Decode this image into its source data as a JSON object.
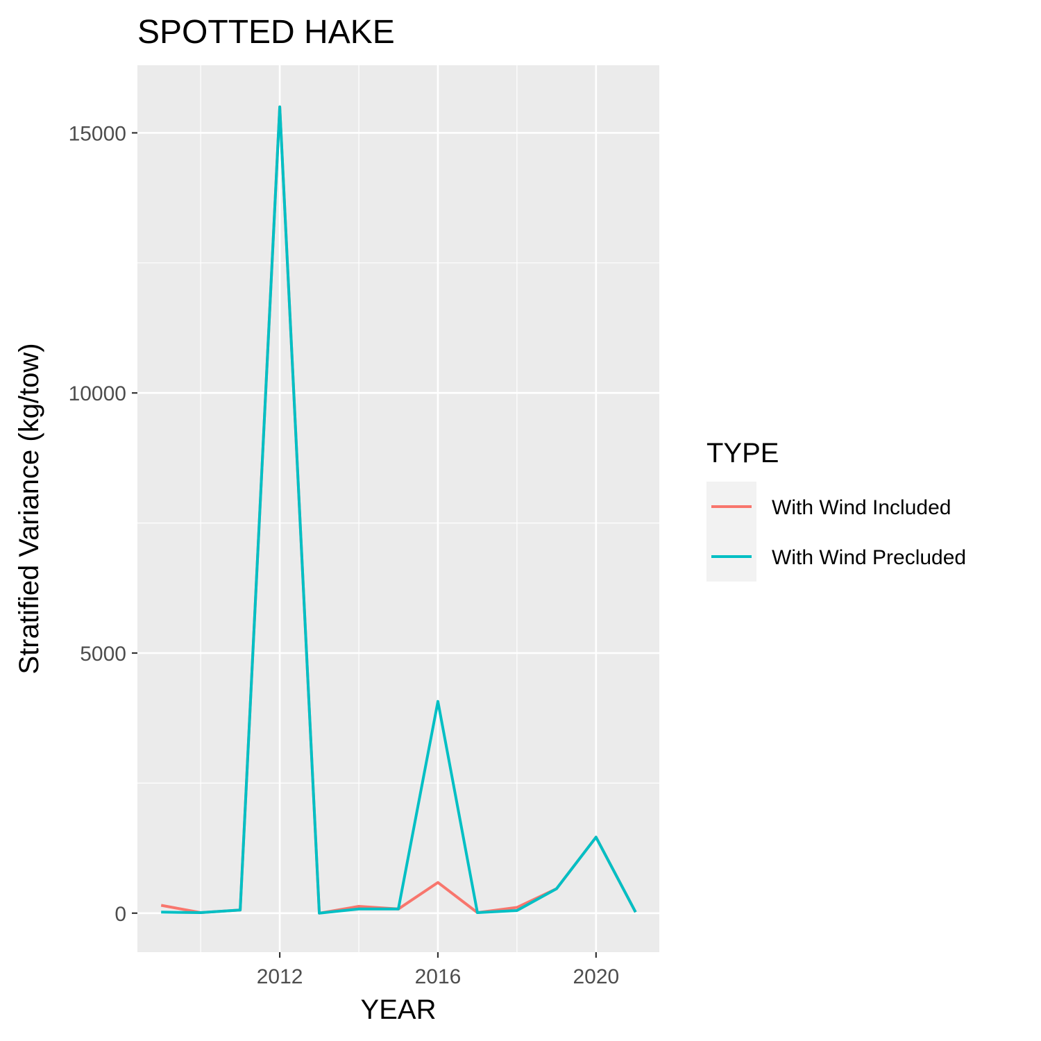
{
  "chart_data": {
    "type": "line",
    "title": "SPOTTED HAKE",
    "xlabel": "YEAR",
    "ylabel": "Stratified Variance (kg/tow)",
    "x": [
      2009,
      2010,
      2011,
      2012,
      2013,
      2014,
      2015,
      2016,
      2017,
      2018,
      2019,
      2020,
      2021
    ],
    "xticks": [
      2012,
      2016,
      2020
    ],
    "yticks": [
      0,
      5000,
      10000,
      15000
    ],
    "xlim": [
      2008.4,
      2021.6
    ],
    "ylim": [
      -750,
      16300
    ],
    "series": [
      {
        "name": "With Wind Included",
        "color": "#F8766D",
        "values": [
          150,
          10,
          60,
          15500,
          0,
          130,
          80,
          590,
          10,
          110,
          470,
          1460,
          20
        ]
      },
      {
        "name": "With Wind Precluded",
        "color": "#00BFC4",
        "values": [
          20,
          10,
          60,
          15500,
          0,
          80,
          80,
          4070,
          10,
          50,
          470,
          1460,
          20
        ]
      }
    ],
    "legend": {
      "title": "TYPE",
      "placement": "right"
    },
    "grid": true
  }
}
